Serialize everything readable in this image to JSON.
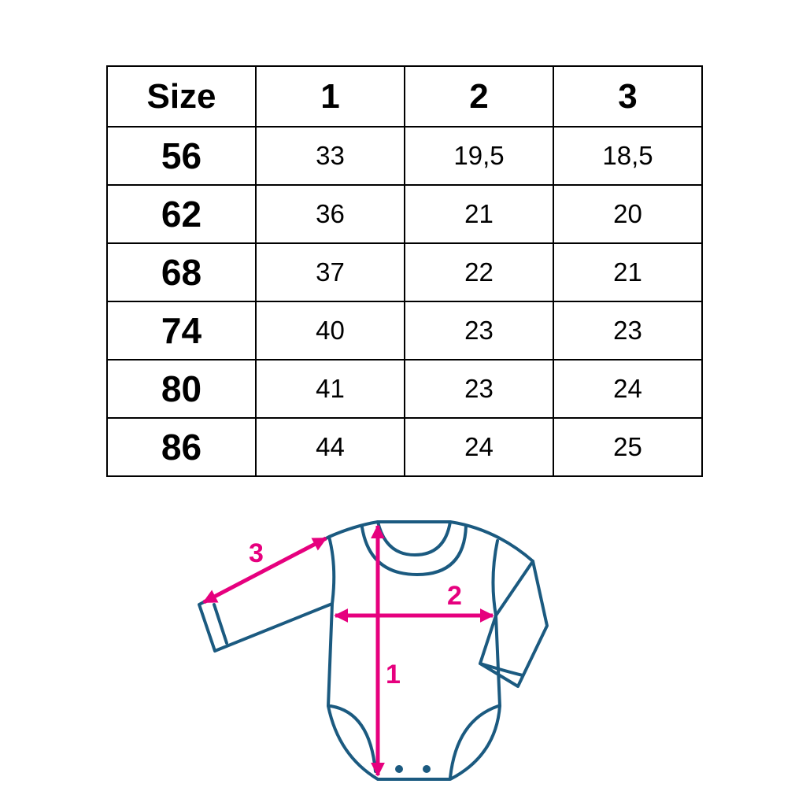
{
  "table": {
    "headers": [
      "Size",
      "1",
      "2",
      "3"
    ],
    "rows": [
      [
        "56",
        "33",
        "19,5",
        "18,5"
      ],
      [
        "62",
        "36",
        "21",
        "20"
      ],
      [
        "68",
        "37",
        "22",
        "21"
      ],
      [
        "74",
        "40",
        "23",
        "23"
      ],
      [
        "80",
        "41",
        "23",
        "24"
      ],
      [
        "86",
        "44",
        "24",
        "25"
      ]
    ]
  },
  "diagram": {
    "garment": "long-sleeve baby bodysuit",
    "outline_color": "#1B5A80",
    "arrow_color": "#E6007E",
    "labels": {
      "length": "1",
      "width": "2",
      "sleeve": "3"
    }
  }
}
